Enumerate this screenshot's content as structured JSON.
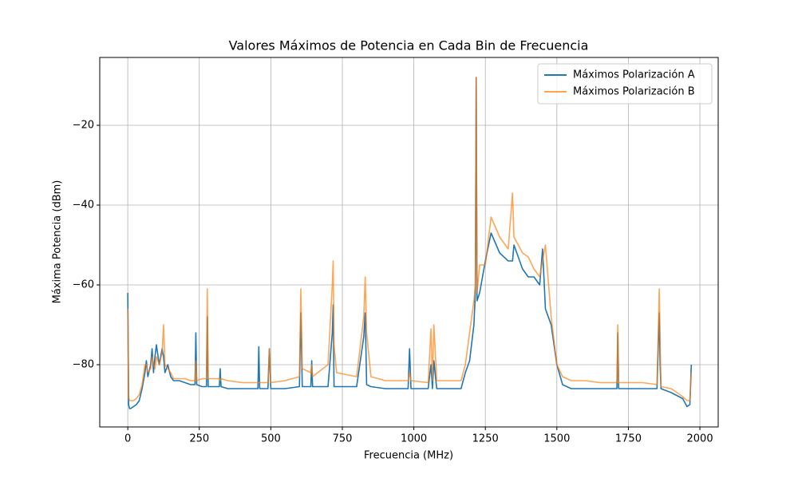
{
  "chart_data": {
    "type": "line",
    "title": "Valores Máximos de Potencia en Cada Bin de Frecuencia",
    "x_label": "Frecuencia (MHz)",
    "y_label": "Máxima Potencia (dBm)",
    "x": [
      0,
      3,
      6,
      10,
      20,
      30,
      40,
      50,
      60,
      65,
      70,
      80,
      85,
      90,
      95,
      100,
      110,
      120,
      125,
      130,
      140,
      150,
      160,
      180,
      200,
      220,
      235,
      238,
      241,
      260,
      275,
      278,
      281,
      300,
      320,
      323,
      326,
      350,
      400,
      455,
      458,
      461,
      490,
      495,
      500,
      550,
      600,
      605,
      610,
      640,
      643,
      646,
      700,
      715,
      718,
      721,
      730,
      800,
      825,
      830,
      835,
      850,
      900,
      980,
      985,
      990,
      1050,
      1060,
      1065,
      1070,
      1080,
      1100,
      1150,
      1165,
      1180,
      1195,
      1210,
      1215,
      1218,
      1221,
      1230,
      1250,
      1270,
      1300,
      1330,
      1345,
      1350,
      1380,
      1400,
      1420,
      1440,
      1450,
      1460,
      1480,
      1500,
      1520,
      1550,
      1600,
      1650,
      1700,
      1710,
      1713,
      1716,
      1730,
      1750,
      1800,
      1850,
      1858,
      1861,
      1864,
      1900,
      1940,
      1955,
      1965,
      1970
    ],
    "series": [
      {
        "name": "Máximos Polarización A",
        "color": "#1f77b4",
        "opacity": 1,
        "values": [
          -62,
          -90,
          -91,
          -91,
          -90.5,
          -90,
          -89,
          -86,
          -82,
          -79,
          -83,
          -80,
          -76,
          -82,
          -78,
          -75,
          -80,
          -76,
          -78,
          -82,
          -80,
          -83,
          -84,
          -84,
          -84.5,
          -85,
          -85,
          -72,
          -85,
          -85.5,
          -85.5,
          -68,
          -85.5,
          -85.5,
          -85.5,
          -81,
          -85.5,
          -86,
          -86,
          -86,
          -75.5,
          -86,
          -86,
          -76,
          -86,
          -86,
          -85.5,
          -67,
          -85.5,
          -85.5,
          -79,
          -85.5,
          -85.5,
          -72,
          -65,
          -85.5,
          -85.5,
          -85.5,
          -73,
          -67,
          -85,
          -85.5,
          -86,
          -86,
          -76,
          -86,
          -86,
          -80,
          -86,
          -79,
          -86,
          -86,
          -86,
          -86,
          -82,
          -79,
          -70,
          -62,
          -8,
          -64,
          -62,
          -54,
          -47,
          -52,
          -54,
          -54,
          -50,
          -56,
          -58,
          -58,
          -60,
          -51,
          -66,
          -70,
          -80,
          -85,
          -86,
          -86,
          -86,
          -86,
          -86,
          -72,
          -86,
          -86,
          -86,
          -86,
          -86,
          -67,
          -80,
          -86,
          -87,
          -88.5,
          -90.5,
          -90,
          -80
        ]
      },
      {
        "name": "Máximos Polarización B",
        "color": "#ff7f0e",
        "opacity": 0.7,
        "values": [
          -66,
          -88,
          -89,
          -89,
          -89,
          -88.5,
          -87.5,
          -85,
          -80,
          -80,
          -82,
          -81,
          -78,
          -80,
          -81,
          -78,
          -80,
          -77,
          -70,
          -80,
          -81,
          -82,
          -83.5,
          -83.5,
          -83.5,
          -84,
          -84,
          -79,
          -84,
          -83.5,
          -83.5,
          -61,
          -83.5,
          -83.5,
          -83.5,
          -84,
          -83.5,
          -84,
          -84.5,
          -84.5,
          -84.5,
          -84.5,
          -84.5,
          -76,
          -84.5,
          -84,
          -83,
          -61,
          -81,
          -82,
          -80,
          -83,
          -80,
          -60,
          -54,
          -75,
          -82,
          -83,
          -68,
          -58,
          -72,
          -83,
          -84,
          -84,
          -82,
          -84,
          -84.5,
          -71,
          -84,
          -70,
          -84,
          -84,
          -84,
          -84,
          -80,
          -72,
          -64,
          -60,
          -8,
          -62,
          -55,
          -55,
          -43,
          -48,
          -51,
          -37,
          -48,
          -52,
          -53,
          -56,
          -58,
          -54,
          -50,
          -68,
          -80,
          -83,
          -84,
          -84,
          -84.5,
          -84.5,
          -84.5,
          -70,
          -84.5,
          -84.5,
          -84.5,
          -84.5,
          -85,
          -61,
          -74,
          -85.5,
          -86,
          -88,
          -89,
          -89,
          -82
        ]
      }
    ],
    "xlim": [
      -98,
      2064
    ],
    "ylim": [
      -95.6,
      -3
    ],
    "xticks": [
      0,
      250,
      500,
      750,
      1000,
      1250,
      1500,
      1750,
      2000
    ],
    "yticks": [
      {
        "value": -80,
        "label": "−80"
      },
      {
        "value": -60,
        "label": "−60"
      },
      {
        "value": -40,
        "label": "−40"
      },
      {
        "value": -20,
        "label": "−20"
      }
    ],
    "grid": true,
    "legend": "upper right"
  }
}
